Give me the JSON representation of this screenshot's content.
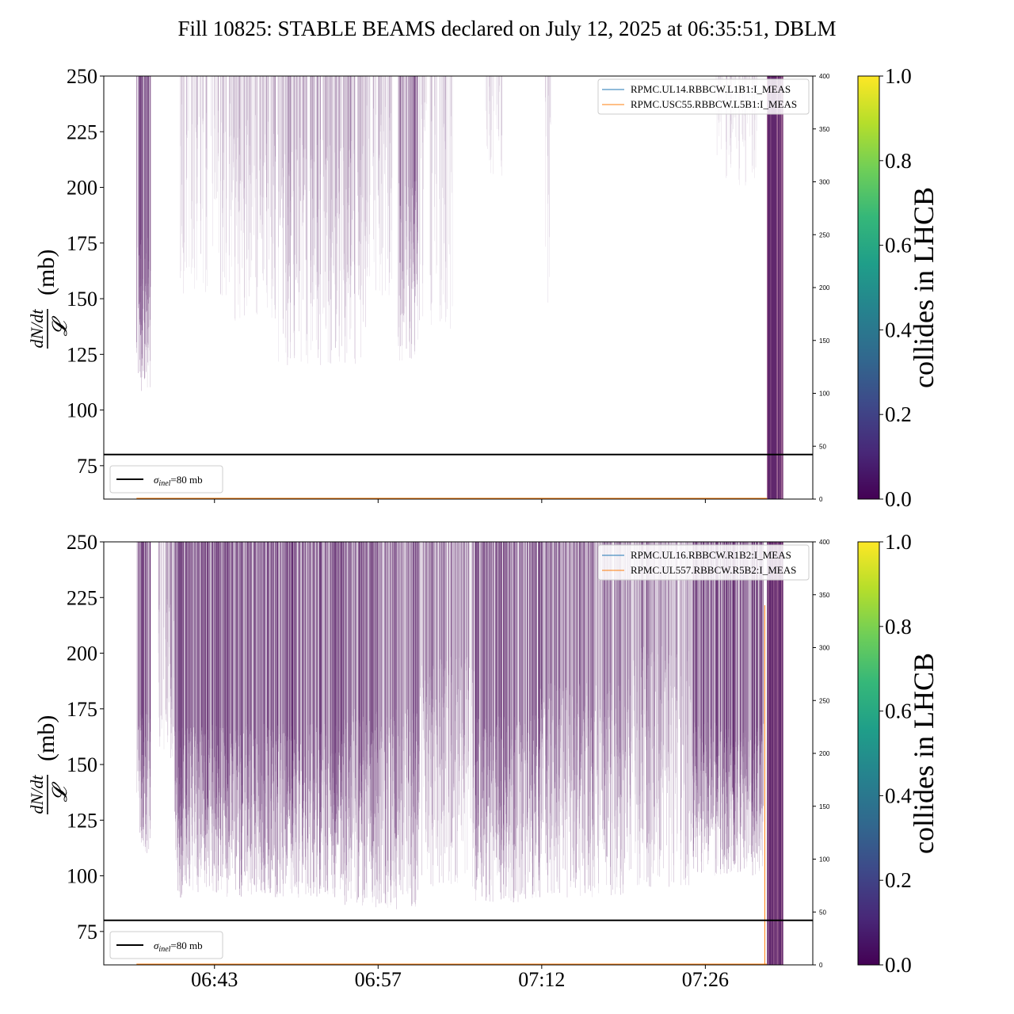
{
  "title": "Fill 10825: STABLE BEAMS declared on July 12, 2025 at 06:35:51, DBLM",
  "colors": {
    "trace": "#440154",
    "line_blue": "#1f77b4",
    "line_orange": "#ff7f0e",
    "sigma_line": "#000000"
  },
  "chart_data": [
    {
      "type": "line",
      "ylabel_num": "dN/dt",
      "ylabel_den": "𝓛",
      "ylabel_unit": "(mb)",
      "ylim": [
        60,
        250
      ],
      "yticks": [
        "75",
        "100",
        "125",
        "150",
        "175",
        "200",
        "225",
        "250"
      ],
      "ytick_values": [
        75,
        100,
        125,
        150,
        175,
        200,
        225,
        250
      ],
      "y2lim": [
        0,
        400
      ],
      "y2ticks": [
        "0",
        "50",
        "100",
        "150",
        "200",
        "250",
        "300",
        "350",
        "400"
      ],
      "y2tick_values": [
        0,
        50,
        100,
        150,
        200,
        250,
        300,
        350,
        400
      ],
      "xlim_minutes": [
        0,
        65
      ],
      "xtick_minutes": [
        10.15,
        25.15,
        40.15,
        55.15
      ],
      "xticks": [
        "",
        "",
        "",
        ""
      ],
      "sigma_inel": {
        "value": 80,
        "label": "=80 mb",
        "symbol": "σ",
        "subscript": "inel"
      },
      "legend": [
        {
          "name": "RPMC.UL14.RBBCW.L1B1:I_MEAS",
          "color": "#1f77b4"
        },
        {
          "name": "RPMC.USC55.RBBCW.L5B1:I_MEAS",
          "color": "#ff7f0e"
        }
      ],
      "activity": {
        "density_bands": [
          {
            "start": 3,
            "end": 4.3,
            "level": 0.85,
            "min_y": 108
          },
          {
            "start": 7,
            "end": 12,
            "level": 0.15,
            "min_y": 150
          },
          {
            "start": 12,
            "end": 16,
            "level": 0.25,
            "min_y": 140
          },
          {
            "start": 16,
            "end": 24,
            "level": 0.35,
            "min_y": 120
          },
          {
            "start": 24,
            "end": 26.5,
            "level": 0.2,
            "min_y": 150
          },
          {
            "start": 27,
            "end": 29,
            "level": 0.6,
            "min_y": 122
          },
          {
            "start": 29,
            "end": 32,
            "level": 0.12,
            "min_y": 135
          },
          {
            "start": 35,
            "end": 36.5,
            "level": 0.1,
            "min_y": 200
          },
          {
            "start": 40.3,
            "end": 41,
            "level": 0.12,
            "min_y": 148
          },
          {
            "start": 56,
            "end": 60,
            "level": 0.1,
            "min_y": 200
          }
        ],
        "solid_band": {
          "start": 60.8,
          "end": 62.3
        }
      }
    },
    {
      "type": "line",
      "ylabel_num": "dN/dt",
      "ylabel_den": "𝓛",
      "ylabel_unit": "(mb)",
      "ylim": [
        60,
        250
      ],
      "yticks": [
        "75",
        "100",
        "125",
        "150",
        "175",
        "200",
        "225",
        "250"
      ],
      "ytick_values": [
        75,
        100,
        125,
        150,
        175,
        200,
        225,
        250
      ],
      "y2lim": [
        0,
        400
      ],
      "y2ticks": [
        "0",
        "50",
        "100",
        "150",
        "200",
        "250",
        "300",
        "350",
        "400"
      ],
      "y2tick_values": [
        0,
        50,
        100,
        150,
        200,
        250,
        300,
        350,
        400
      ],
      "xlim_minutes": [
        0,
        65
      ],
      "xtick_minutes": [
        10.15,
        25.15,
        40.15,
        55.15
      ],
      "xticks": [
        "06:43",
        "06:57",
        "07:12",
        "07:26"
      ],
      "sigma_inel": {
        "value": 80,
        "label": "=80 mb",
        "symbol": "σ",
        "subscript": "inel"
      },
      "legend": [
        {
          "name": "RPMC.UL16.RBBCW.R1B2:I_MEAS",
          "color": "#1f77b4"
        },
        {
          "name": "RPMC.UL557.RBBCW.R5B2:I_MEAS",
          "color": "#ff7f0e"
        }
      ],
      "activity": {
        "density_bands": [
          {
            "start": 3,
            "end": 4.3,
            "level": 0.9,
            "min_y": 110
          },
          {
            "start": 5,
            "end": 6.5,
            "level": 0.4,
            "min_y": 150
          },
          {
            "start": 6.5,
            "end": 22,
            "level": 0.85,
            "min_y": 90
          },
          {
            "start": 22,
            "end": 29,
            "level": 0.75,
            "min_y": 85
          },
          {
            "start": 29,
            "end": 34,
            "level": 0.55,
            "min_y": 95
          },
          {
            "start": 34,
            "end": 40,
            "level": 0.8,
            "min_y": 88
          },
          {
            "start": 40,
            "end": 48,
            "level": 0.65,
            "min_y": 90
          },
          {
            "start": 48,
            "end": 54,
            "level": 0.5,
            "min_y": 95
          },
          {
            "start": 54,
            "end": 60.5,
            "level": 0.9,
            "min_y": 100
          }
        ],
        "solid_band": {
          "start": 60.8,
          "end": 62.3
        }
      }
    }
  ],
  "colorbar": {
    "label": "collides in LHCB",
    "ticks": [
      "0.0",
      "0.2",
      "0.4",
      "0.6",
      "0.8",
      "1.0"
    ],
    "tick_values": [
      0.0,
      0.2,
      0.4,
      0.6,
      0.8,
      1.0
    ],
    "stops": [
      "#440154",
      "#482878",
      "#3e4989",
      "#31688e",
      "#26828e",
      "#1f9e89",
      "#35b779",
      "#6ece58",
      "#b5de2b",
      "#fde725"
    ]
  }
}
